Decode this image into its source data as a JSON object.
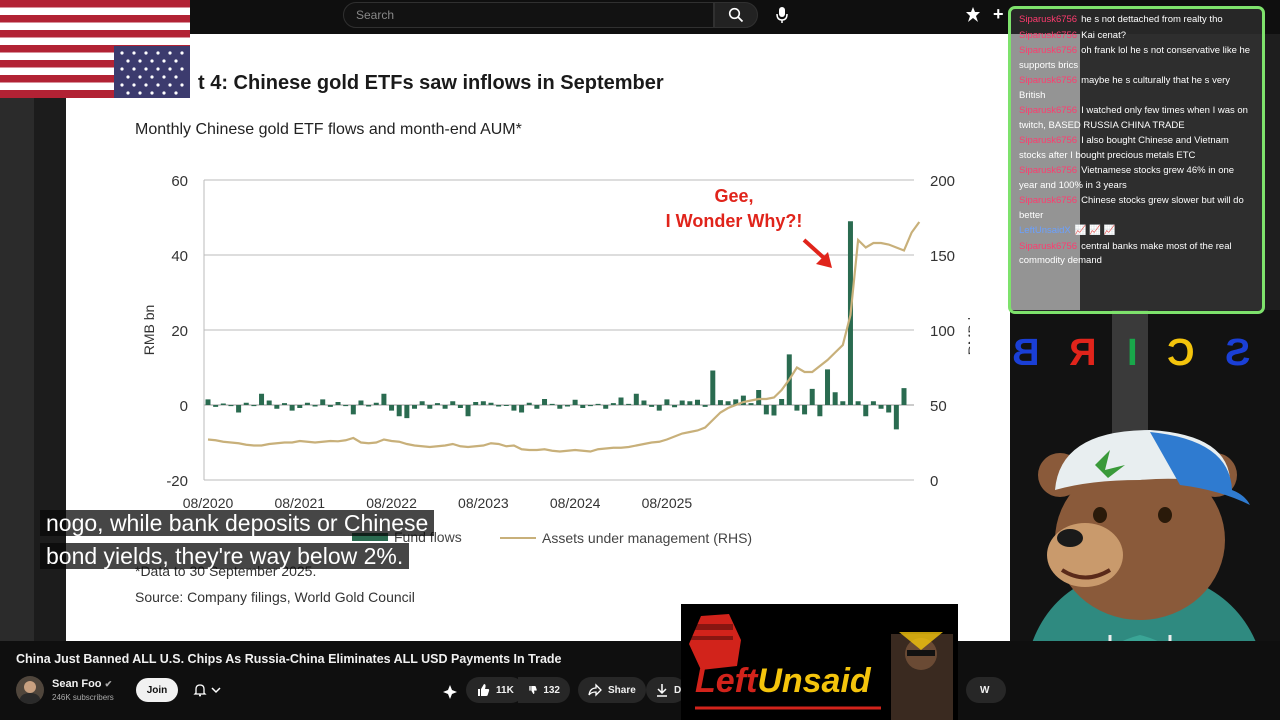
{
  "topbar": {
    "search_placeholder": "Search",
    "search_icon": "search-icon",
    "mic_icon": "mic-icon",
    "create_icon": "create-icon"
  },
  "slide": {
    "title": "t 4: Chinese gold ETFs saw inflows in September",
    "annotation_line1": "Gee,",
    "annotation_line2": "I Wonder Why?!",
    "legend_flows": "Fund flows",
    "legend_aum": "Assets under management (RHS)",
    "note": "*Data to 30 September 2025.",
    "source": "Source: Company filings, World Gold Council"
  },
  "chart_data": {
    "type": "bar",
    "title": "Monthly Chinese gold ETF flows and month-end AUM*",
    "ylabel": "RMB bn",
    "y2label": "RMB bn",
    "ylim": [
      -20,
      60
    ],
    "y2lim": [
      0,
      200
    ],
    "yticks": [
      "60",
      "40",
      "20",
      "0",
      "-20"
    ],
    "y2ticks": [
      "200",
      "150",
      "100",
      "50",
      "0"
    ],
    "xticks": [
      "08/2020",
      "08/2021",
      "08/2022",
      "08/2023",
      "08/2024",
      "08/2025"
    ],
    "grid": true,
    "legend_position": "bottom",
    "series": [
      {
        "name": "Fund flows",
        "kind": "bar",
        "color": "#2a6b50",
        "values": [
          1.5,
          -0.5,
          0.4,
          -0.3,
          -2,
          0.6,
          -0.3,
          3,
          1.2,
          -1,
          0.5,
          -1.5,
          -0.8,
          0.6,
          -0.4,
          1.5,
          -0.5,
          0.8,
          -0.3,
          -2.5,
          1.2,
          -0.4,
          0.6,
          3,
          -1.5,
          -3,
          -3.5,
          -1,
          1,
          -1,
          0.5,
          -1,
          1,
          -0.8,
          -3,
          0.8,
          1,
          0.6,
          -0.4,
          -0.2,
          -1.5,
          -2,
          0.6,
          -1,
          1.6,
          0.3,
          -1,
          -0.4,
          1.4,
          -0.8,
          -0.3,
          0.3,
          -1,
          0.5,
          2,
          0.3,
          3,
          1.2,
          -0.5,
          -1.5,
          1.5,
          -0.6,
          1.2,
          1,
          1.4,
          -0.5,
          9.2,
          1.3,
          1,
          1.5,
          2.5,
          0.5,
          4,
          -2.5,
          -2.8,
          1.6,
          13.5,
          -1.5,
          -2.5,
          4.3,
          -3,
          9.5,
          3.4,
          1,
          49,
          1,
          -3,
          1,
          -1,
          -2,
          -6.5,
          4.5
        ]
      },
      {
        "name": "Assets under management (RHS)",
        "kind": "line",
        "color": "#c8b07a",
        "values": [
          27,
          26.5,
          25.5,
          25,
          24.5,
          23.5,
          23,
          23,
          24,
          24.5,
          25,
          25,
          26,
          25.5,
          25,
          25.5,
          26,
          25.8,
          26.5,
          28,
          25,
          24.5,
          25,
          27,
          26,
          25.5,
          24,
          23,
          22.5,
          22,
          22.5,
          23,
          24,
          22.5,
          22,
          22.5,
          23,
          24.5,
          24,
          22.5,
          23,
          20.5,
          20,
          20,
          20.5,
          19.5,
          19,
          19.5,
          20,
          19.5,
          19,
          20.5,
          21,
          21.5,
          21.5,
          22,
          23,
          24,
          25,
          25.5,
          27,
          29,
          31,
          32,
          33,
          35,
          40,
          45,
          48,
          50,
          52,
          53,
          54,
          54,
          55,
          60,
          67,
          75,
          72,
          72,
          76,
          80,
          85,
          90,
          110,
          160,
          155,
          158,
          158,
          157,
          155,
          153,
          165,
          172
        ]
      }
    ]
  },
  "caption": {
    "line1": "nogo, while bank deposits or Chinese",
    "line2": "bond yields, they're way below 2%."
  },
  "chat": {
    "messages": [
      {
        "user": "Siparusk6756",
        "text": "he s not dettached from realty tho",
        "user_color": "red"
      },
      {
        "user": "Siparusk6756",
        "text": "Kai cenat?",
        "user_color": "red"
      },
      {
        "user": "Siparusk6756",
        "text": "oh frank lol he s not conservative like he supports brics",
        "user_color": "red"
      },
      {
        "user": "Siparusk6756",
        "text": "maybe he s culturally that he s very British",
        "user_color": "red"
      },
      {
        "user": "Siparusk6756",
        "text": "I watched only few times when I was on twitch, BASED RUSSIA CHINA TRADE",
        "user_color": "red"
      },
      {
        "user": "Siparusk6756",
        "text": "I also bought Chinese and Vietnam stocks after I bought precious metals ETC",
        "user_color": "red"
      },
      {
        "user": "Siparusk6756",
        "text": "Vietnamese stocks grew 46% in one year and 100% in 3 years",
        "user_color": "red"
      },
      {
        "user": "Siparusk6756",
        "text": "Chinese stocks grew slower but will do better",
        "user_color": "red"
      },
      {
        "user": "LeftUnsaidX",
        "text": "📈 📈 📈",
        "user_color": "blue"
      },
      {
        "user": "Siparusk6756",
        "text": "central banks make most of the real commodity demand",
        "user_color": "red"
      }
    ]
  },
  "brics": {
    "letters": [
      "B",
      "R",
      "I",
      "C",
      "S",
      "+"
    ],
    "colors": [
      "#1a3fd6",
      "#e0241b",
      "#19a74a",
      "#f4c40c",
      "#1a3fd6",
      "#ffffff"
    ]
  },
  "video": {
    "title": "China Just Banned ALL U.S. Chips As Russia-China Eliminates ALL USD Payments In Trade",
    "channel": "Sean Foo",
    "subscribers": "246K subscribers",
    "join_label": "Join",
    "likes": "11K",
    "dislikes": "132",
    "share_label": "Share",
    "download_label": "D",
    "more_label": "W"
  },
  "overlay": {
    "brand_left": "Left",
    "brand_right": "Unsaid"
  }
}
